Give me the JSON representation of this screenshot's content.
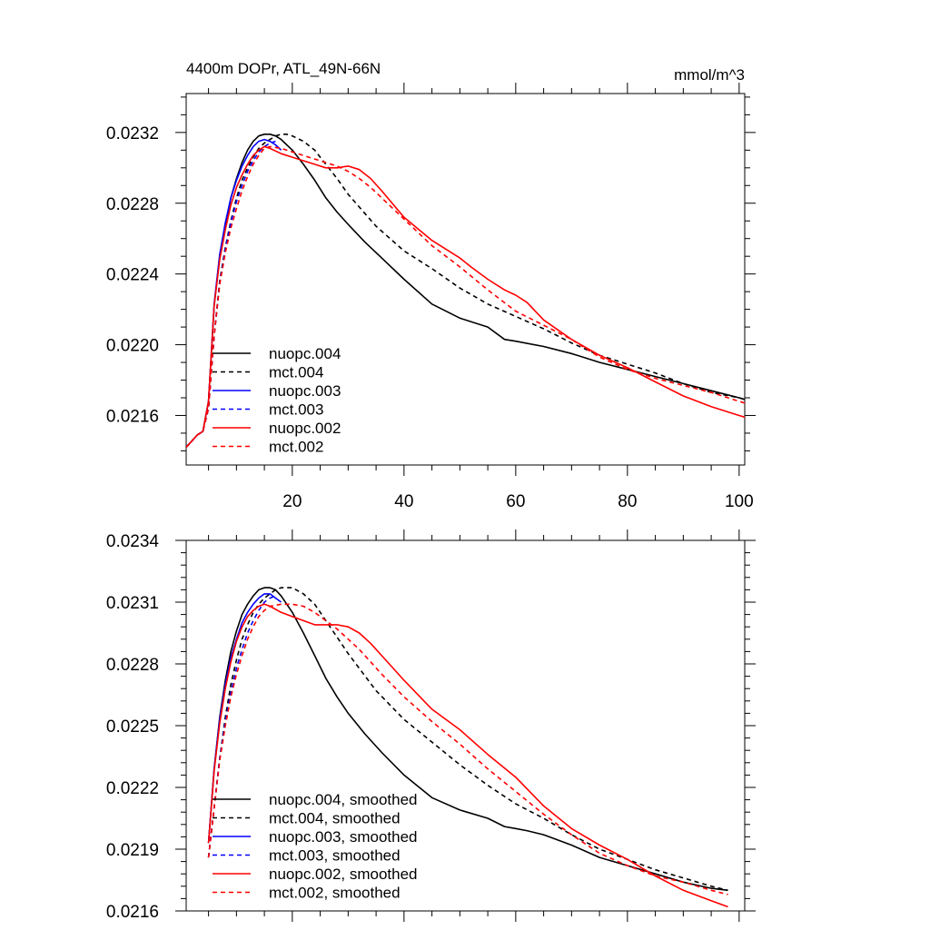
{
  "chart_data": [
    {
      "type": "line",
      "title": "4400m DOPr, ATL_49N-66N",
      "units_label": "mmol/m^3",
      "xlabel": "",
      "ylabel": "",
      "xlim": [
        1,
        101
      ],
      "ylim": [
        0.02132,
        0.02342
      ],
      "xticks": [
        20,
        40,
        60,
        80,
        100
      ],
      "xtick_labels": [
        "20",
        "40",
        "60",
        "80",
        "100"
      ],
      "yticks": [
        0.0216,
        0.022,
        0.0224,
        0.0228,
        0.0232
      ],
      "ytick_labels": [
        "0.0216",
        "0.0220",
        "0.0224",
        "0.0228",
        "0.0232"
      ],
      "legend_position": "bottom-left",
      "series": [
        {
          "name": "nuopc.004",
          "color": "#000000",
          "dash": "solid",
          "x": [
            1,
            3,
            4,
            5,
            6,
            7,
            8,
            9,
            10,
            11,
            12,
            13,
            14,
            15,
            16,
            17,
            18,
            19,
            20,
            22,
            24,
            26,
            28,
            30,
            33,
            36,
            40,
            45,
            50,
            55,
            58,
            60,
            65,
            70,
            75,
            80,
            85,
            90,
            95,
            100,
            101
          ],
          "y": [
            0.02142,
            0.02149,
            0.02151,
            0.02168,
            0.02222,
            0.0225,
            0.02268,
            0.02283,
            0.02294,
            0.02303,
            0.0231,
            0.02315,
            0.02318,
            0.02319,
            0.02319,
            0.02318,
            0.02316,
            0.02313,
            0.0231,
            0.02302,
            0.02293,
            0.02283,
            0.02275,
            0.02268,
            0.02258,
            0.02249,
            0.02237,
            0.02223,
            0.02215,
            0.0221,
            0.02203,
            0.02202,
            0.02199,
            0.02195,
            0.0219,
            0.02186,
            0.02182,
            0.02178,
            0.02174,
            0.0217,
            0.02169
          ]
        },
        {
          "name": "mct.004",
          "color": "#000000",
          "dash": "dashed",
          "x": [
            1,
            3,
            4,
            5,
            6,
            7,
            8,
            9,
            10,
            11,
            12,
            13,
            14,
            15,
            16,
            17,
            18,
            19,
            20,
            22,
            24,
            26,
            28,
            30,
            35,
            40,
            45,
            50,
            55,
            60,
            65,
            70,
            75,
            80,
            85,
            90,
            95,
            100,
            101
          ],
          "y": [
            0.02142,
            0.02149,
            0.02151,
            0.02164,
            0.02205,
            0.02236,
            0.02255,
            0.0227,
            0.02283,
            0.02293,
            0.023,
            0.02306,
            0.02311,
            0.02314,
            0.02316,
            0.02318,
            0.02319,
            0.02319,
            0.02318,
            0.02315,
            0.0231,
            0.02302,
            0.02294,
            0.02285,
            0.02267,
            0.02253,
            0.02243,
            0.02232,
            0.02223,
            0.02216,
            0.02209,
            0.02201,
            0.02194,
            0.02189,
            0.02184,
            0.02178,
            0.02173,
            0.0217,
            0.02169
          ]
        },
        {
          "name": "nuopc.003",
          "color": "#0000ff",
          "dash": "solid",
          "x": [
            1,
            3,
            4,
            5,
            6,
            7,
            8,
            9,
            10,
            11,
            12,
            13,
            14,
            15,
            16,
            17,
            18
          ],
          "y": [
            0.02142,
            0.02149,
            0.02151,
            0.02168,
            0.02223,
            0.02251,
            0.02269,
            0.02283,
            0.02293,
            0.02301,
            0.02307,
            0.02312,
            0.02315,
            0.02316,
            0.02315,
            0.02313,
            0.0231
          ]
        },
        {
          "name": "mct.003",
          "color": "#0000ff",
          "dash": "dashed",
          "x": [
            1,
            3,
            4,
            5,
            6,
            7,
            8,
            9,
            10,
            11,
            12,
            13,
            14,
            15,
            16,
            17
          ],
          "y": [
            0.02142,
            0.02149,
            0.02151,
            0.02164,
            0.02205,
            0.02235,
            0.02254,
            0.02269,
            0.02281,
            0.0229,
            0.02298,
            0.02304,
            0.02309,
            0.02312,
            0.02314,
            0.02315
          ]
        },
        {
          "name": "nuopc.002",
          "color": "#ff0000",
          "dash": "solid",
          "x": [
            1,
            3,
            4,
            5,
            6,
            7,
            8,
            9,
            10,
            11,
            12,
            13,
            14,
            15,
            16,
            18,
            20,
            22,
            24,
            26,
            28,
            30,
            32,
            34,
            36,
            40,
            45,
            50,
            52,
            55,
            58,
            60,
            62,
            65,
            70,
            75,
            80,
            85,
            90,
            95,
            100,
            101
          ],
          "y": [
            0.02142,
            0.02149,
            0.02151,
            0.02168,
            0.02222,
            0.02248,
            0.02265,
            0.02279,
            0.02289,
            0.02296,
            0.02302,
            0.02307,
            0.0231,
            0.02312,
            0.02311,
            0.02308,
            0.02306,
            0.02304,
            0.02302,
            0.023,
            0.023,
            0.02301,
            0.02299,
            0.02294,
            0.02287,
            0.02272,
            0.02259,
            0.02249,
            0.02244,
            0.02237,
            0.02231,
            0.02228,
            0.02224,
            0.02214,
            0.02203,
            0.02194,
            0.02187,
            0.02179,
            0.02171,
            0.02165,
            0.0216,
            0.02159
          ]
        },
        {
          "name": "mct.002",
          "color": "#ff0000",
          "dash": "dashed",
          "x": [
            1,
            3,
            4,
            5,
            6,
            7,
            8,
            9,
            10,
            11,
            12,
            13,
            14,
            15,
            16,
            18,
            20,
            22,
            24,
            26,
            28,
            30,
            32,
            34,
            36,
            40,
            45,
            50,
            55,
            60,
            65,
            70,
            75,
            80,
            85,
            90,
            95,
            100,
            101
          ],
          "y": [
            0.02142,
            0.02149,
            0.02151,
            0.02164,
            0.02205,
            0.02234,
            0.02252,
            0.02266,
            0.02277,
            0.02287,
            0.02295,
            0.02302,
            0.02307,
            0.02311,
            0.02312,
            0.02311,
            0.02309,
            0.02307,
            0.02305,
            0.02303,
            0.02301,
            0.02298,
            0.02294,
            0.02289,
            0.02283,
            0.02271,
            0.02256,
            0.02244,
            0.02231,
            0.02219,
            0.02211,
            0.02203,
            0.02193,
            0.02186,
            0.02181,
            0.02177,
            0.02173,
            0.02168,
            0.02167
          ]
        }
      ]
    },
    {
      "type": "line",
      "title": "",
      "xlabel": "",
      "ylabel": "",
      "xlim": [
        1,
        101
      ],
      "ylim": [
        0.0216,
        0.0234
      ],
      "xticks": [
        20,
        40,
        60,
        80,
        100
      ],
      "xtick_labels": [],
      "yticks": [
        0.0216,
        0.0219,
        0.0222,
        0.0225,
        0.0228,
        0.0231,
        0.0234
      ],
      "ytick_labels": [
        "0.0216",
        "0.0219",
        "0.0222",
        "0.0225",
        "0.0228",
        "0.0231",
        "0.0234"
      ],
      "legend_position": "bottom-left",
      "series": [
        {
          "name": "nuopc.004, smoothed",
          "color": "#000000",
          "dash": "solid",
          "x": [
            5,
            6,
            7,
            8,
            9,
            10,
            11,
            12,
            13,
            14,
            15,
            16,
            17,
            18,
            20,
            22,
            24,
            26,
            28,
            30,
            33,
            36,
            40,
            45,
            50,
            55,
            58,
            60,
            62,
            65,
            70,
            75,
            80,
            85,
            90,
            95,
            98
          ],
          "y": [
            0.02193,
            0.02229,
            0.02254,
            0.02272,
            0.02286,
            0.02296,
            0.02304,
            0.02309,
            0.02313,
            0.02316,
            0.02317,
            0.02317,
            0.02316,
            0.02313,
            0.02305,
            0.02295,
            0.02284,
            0.02273,
            0.02264,
            0.02256,
            0.02246,
            0.02237,
            0.02226,
            0.02215,
            0.02209,
            0.02205,
            0.02201,
            0.022,
            0.02199,
            0.02197,
            0.02192,
            0.02186,
            0.02182,
            0.02178,
            0.02174,
            0.02171,
            0.0217
          ]
        },
        {
          "name": "mct.004, smoothed",
          "color": "#000000",
          "dash": "dashed",
          "x": [
            5,
            6,
            7,
            8,
            9,
            10,
            11,
            12,
            13,
            14,
            15,
            16,
            17,
            18,
            19,
            20,
            22,
            24,
            26,
            28,
            30,
            35,
            40,
            45,
            50,
            55,
            60,
            65,
            70,
            75,
            80,
            85,
            90,
            95,
            98
          ],
          "y": [
            0.02186,
            0.0221,
            0.02234,
            0.02254,
            0.0227,
            0.02282,
            0.02292,
            0.02299,
            0.02305,
            0.02309,
            0.02312,
            0.02314,
            0.02316,
            0.02317,
            0.02317,
            0.02317,
            0.02314,
            0.02309,
            0.02301,
            0.02293,
            0.02285,
            0.02267,
            0.02253,
            0.02242,
            0.02231,
            0.02221,
            0.02212,
            0.02205,
            0.02197,
            0.0219,
            0.02185,
            0.0218,
            0.02176,
            0.02172,
            0.0217
          ]
        },
        {
          "name": "nuopc.003, smoothed",
          "color": "#0000ff",
          "dash": "solid",
          "x": [
            5,
            6,
            7,
            8,
            9,
            10,
            11,
            12,
            13,
            14,
            15,
            16,
            17,
            18
          ],
          "y": [
            0.02193,
            0.02229,
            0.02253,
            0.0227,
            0.02283,
            0.02292,
            0.023,
            0.02305,
            0.02309,
            0.02312,
            0.02314,
            0.02314,
            0.02312,
            0.0231
          ]
        },
        {
          "name": "mct.003, smoothed",
          "color": "#0000ff",
          "dash": "dashed",
          "x": [
            5,
            6,
            7,
            8,
            9,
            10,
            11,
            12,
            13,
            14,
            15,
            16,
            17
          ],
          "y": [
            0.02186,
            0.0221,
            0.02234,
            0.02252,
            0.02266,
            0.02278,
            0.02287,
            0.02295,
            0.02301,
            0.02306,
            0.0231,
            0.02312,
            0.02313
          ]
        },
        {
          "name": "nuopc.002, smoothed",
          "color": "#ff0000",
          "dash": "solid",
          "x": [
            5,
            6,
            7,
            8,
            9,
            10,
            11,
            12,
            13,
            14,
            15,
            16,
            18,
            20,
            22,
            24,
            26,
            28,
            30,
            32,
            34,
            36,
            40,
            45,
            50,
            55,
            60,
            65,
            70,
            75,
            80,
            85,
            90,
            95,
            98
          ],
          "y": [
            0.02193,
            0.02228,
            0.02251,
            0.02268,
            0.02281,
            0.02291,
            0.02298,
            0.02303,
            0.02306,
            0.02308,
            0.02309,
            0.02308,
            0.02305,
            0.02303,
            0.02301,
            0.02299,
            0.02299,
            0.02299,
            0.02298,
            0.02295,
            0.0229,
            0.02284,
            0.02272,
            0.02258,
            0.02248,
            0.02236,
            0.02225,
            0.02211,
            0.022,
            0.02192,
            0.02185,
            0.02177,
            0.0217,
            0.02165,
            0.02162
          ]
        },
        {
          "name": "mct.002, smoothed",
          "color": "#ff0000",
          "dash": "dashed",
          "x": [
            5,
            6,
            7,
            8,
            9,
            10,
            11,
            12,
            13,
            14,
            15,
            16,
            18,
            20,
            22,
            24,
            26,
            28,
            30,
            32,
            34,
            36,
            40,
            45,
            50,
            55,
            60,
            65,
            70,
            75,
            80,
            85,
            90,
            95,
            98
          ],
          "y": [
            0.02186,
            0.0221,
            0.02233,
            0.0225,
            0.02264,
            0.02275,
            0.02284,
            0.02292,
            0.02298,
            0.02303,
            0.02306,
            0.02308,
            0.02309,
            0.02309,
            0.02308,
            0.02305,
            0.02301,
            0.02297,
            0.02292,
            0.02287,
            0.02281,
            0.02275,
            0.02264,
            0.02252,
            0.02241,
            0.02229,
            0.02218,
            0.02207,
            0.02197,
            0.02188,
            0.02182,
            0.02177,
            0.02174,
            0.0217,
            0.02168
          ]
        }
      ]
    }
  ]
}
